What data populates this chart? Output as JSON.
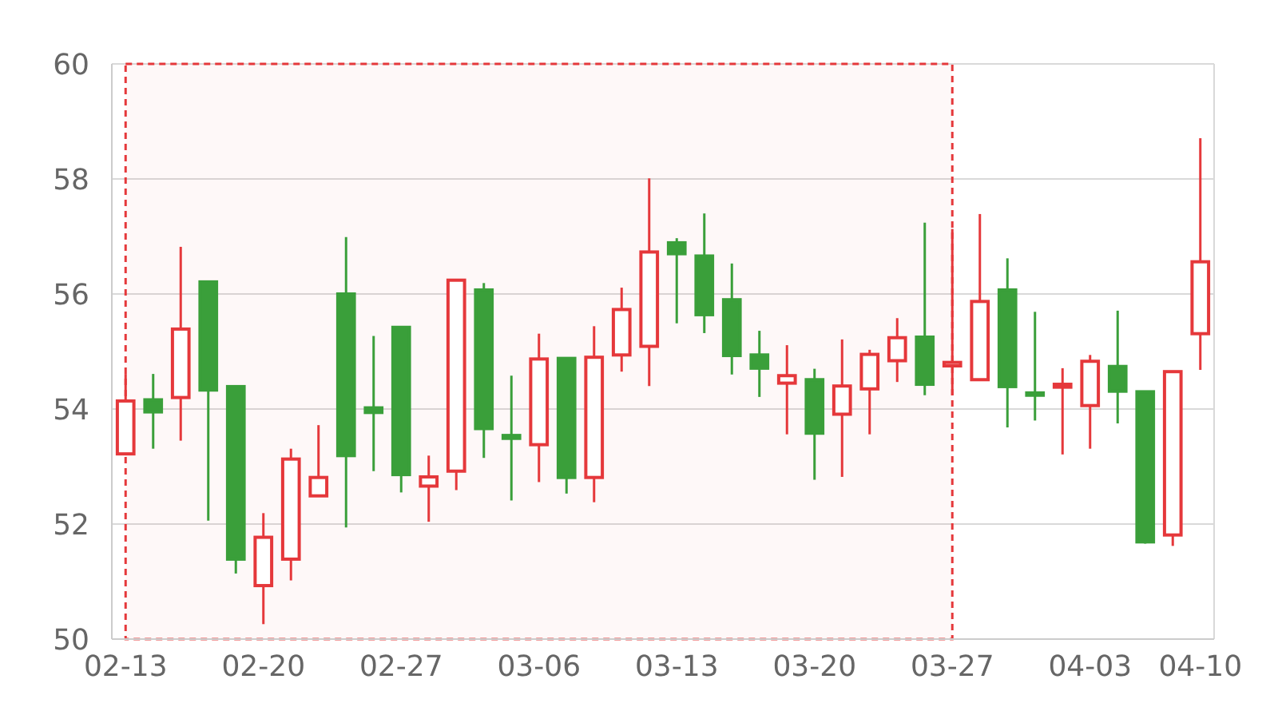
{
  "chart_data": {
    "type": "candlestick",
    "categories": [
      "02-13",
      null,
      null,
      null,
      null,
      "02-20",
      null,
      null,
      null,
      null,
      "02-27",
      null,
      null,
      null,
      null,
      "03-06",
      null,
      null,
      null,
      null,
      "03-13",
      null,
      null,
      null,
      null,
      "03-20",
      null,
      null,
      null,
      null,
      "03-27",
      null,
      null,
      null,
      null,
      "04-03",
      null,
      null,
      null,
      "04-10"
    ],
    "ohlc": [
      [
        53.22,
        54.61,
        53.22,
        54.14
      ],
      [
        54.16,
        54.61,
        53.31,
        53.95
      ],
      [
        54.2,
        56.82,
        53.45,
        55.39
      ],
      [
        56.21,
        56.21,
        52.06,
        54.33
      ],
      [
        54.39,
        54.39,
        51.14,
        51.39
      ],
      [
        50.93,
        52.19,
        50.26,
        51.77
      ],
      [
        51.39,
        53.31,
        51.02,
        53.13
      ],
      [
        52.49,
        53.72,
        52.49,
        52.81
      ],
      [
        56.0,
        56.99,
        51.94,
        53.19
      ],
      [
        54.02,
        55.27,
        52.92,
        53.94
      ],
      [
        55.42,
        55.42,
        52.55,
        52.86
      ],
      [
        52.66,
        53.19,
        52.04,
        52.82
      ],
      [
        52.92,
        56.24,
        52.59,
        56.24
      ],
      [
        56.07,
        56.19,
        53.15,
        53.66
      ],
      [
        53.54,
        54.58,
        52.41,
        53.49
      ],
      [
        53.38,
        55.31,
        52.73,
        54.87
      ],
      [
        54.88,
        54.88,
        52.53,
        52.81
      ],
      [
        52.81,
        55.44,
        52.38,
        54.9
      ],
      [
        54.94,
        56.11,
        54.65,
        55.73
      ],
      [
        55.09,
        58.01,
        54.4,
        56.73
      ],
      [
        56.89,
        56.97,
        55.49,
        56.7
      ],
      [
        56.66,
        57.4,
        55.32,
        55.64
      ],
      [
        55.9,
        56.53,
        54.6,
        54.93
      ],
      [
        54.94,
        55.36,
        54.21,
        54.71
      ],
      [
        54.45,
        55.11,
        53.56,
        54.58
      ],
      [
        54.51,
        54.7,
        52.77,
        53.58
      ],
      [
        53.91,
        55.21,
        52.82,
        54.4
      ],
      [
        54.35,
        55.03,
        53.56,
        54.95
      ],
      [
        54.84,
        55.58,
        54.47,
        55.24
      ],
      [
        55.25,
        57.24,
        54.24,
        54.43
      ],
      [
        54.75,
        57.13,
        54.24,
        54.81
      ],
      [
        54.51,
        57.39,
        54.51,
        55.87
      ],
      [
        56.07,
        56.62,
        53.68,
        54.39
      ],
      [
        54.28,
        55.69,
        53.8,
        54.24
      ],
      [
        54.38,
        54.71,
        53.21,
        54.43
      ],
      [
        54.06,
        54.94,
        53.31,
        54.83
      ],
      [
        54.74,
        55.71,
        53.75,
        54.31
      ],
      [
        54.3,
        54.3,
        51.66,
        51.69
      ],
      [
        51.81,
        54.65,
        51.62,
        54.65
      ],
      [
        55.31,
        58.71,
        54.68,
        56.56
      ]
    ],
    "colors": [
      "#e5383b",
      "#3a9f3a",
      "#e5383b",
      "#3a9f3a",
      "#3a9f3a",
      "#e5383b",
      "#e5383b",
      "#e5383b",
      "#3a9f3a",
      "#3a9f3a",
      "#3a9f3a",
      "#e5383b",
      "#e5383b",
      "#3a9f3a",
      "#3a9f3a",
      "#e5383b",
      "#3a9f3a",
      "#e5383b",
      "#e5383b",
      "#e5383b",
      "#3a9f3a",
      "#3a9f3a",
      "#3a9f3a",
      "#3a9f3a",
      "#e5383b",
      "#3a9f3a",
      "#e5383b",
      "#e5383b",
      "#e5383b",
      "#3a9f3a",
      "#e5383b",
      "#e5383b",
      "#3a9f3a",
      "#3a9f3a",
      "#e5383b",
      "#e5383b",
      "#3a9f3a",
      "#3a9f3a",
      "#e5383b",
      "#e5383b"
    ],
    "ylim": [
      50,
      60
    ],
    "yticks": [
      50,
      52,
      54,
      56,
      58,
      60
    ],
    "grid": "y",
    "bands": [
      {
        "axis": "x",
        "from": "02-13",
        "to": "03-27",
        "color": "#e5383b"
      }
    ]
  }
}
